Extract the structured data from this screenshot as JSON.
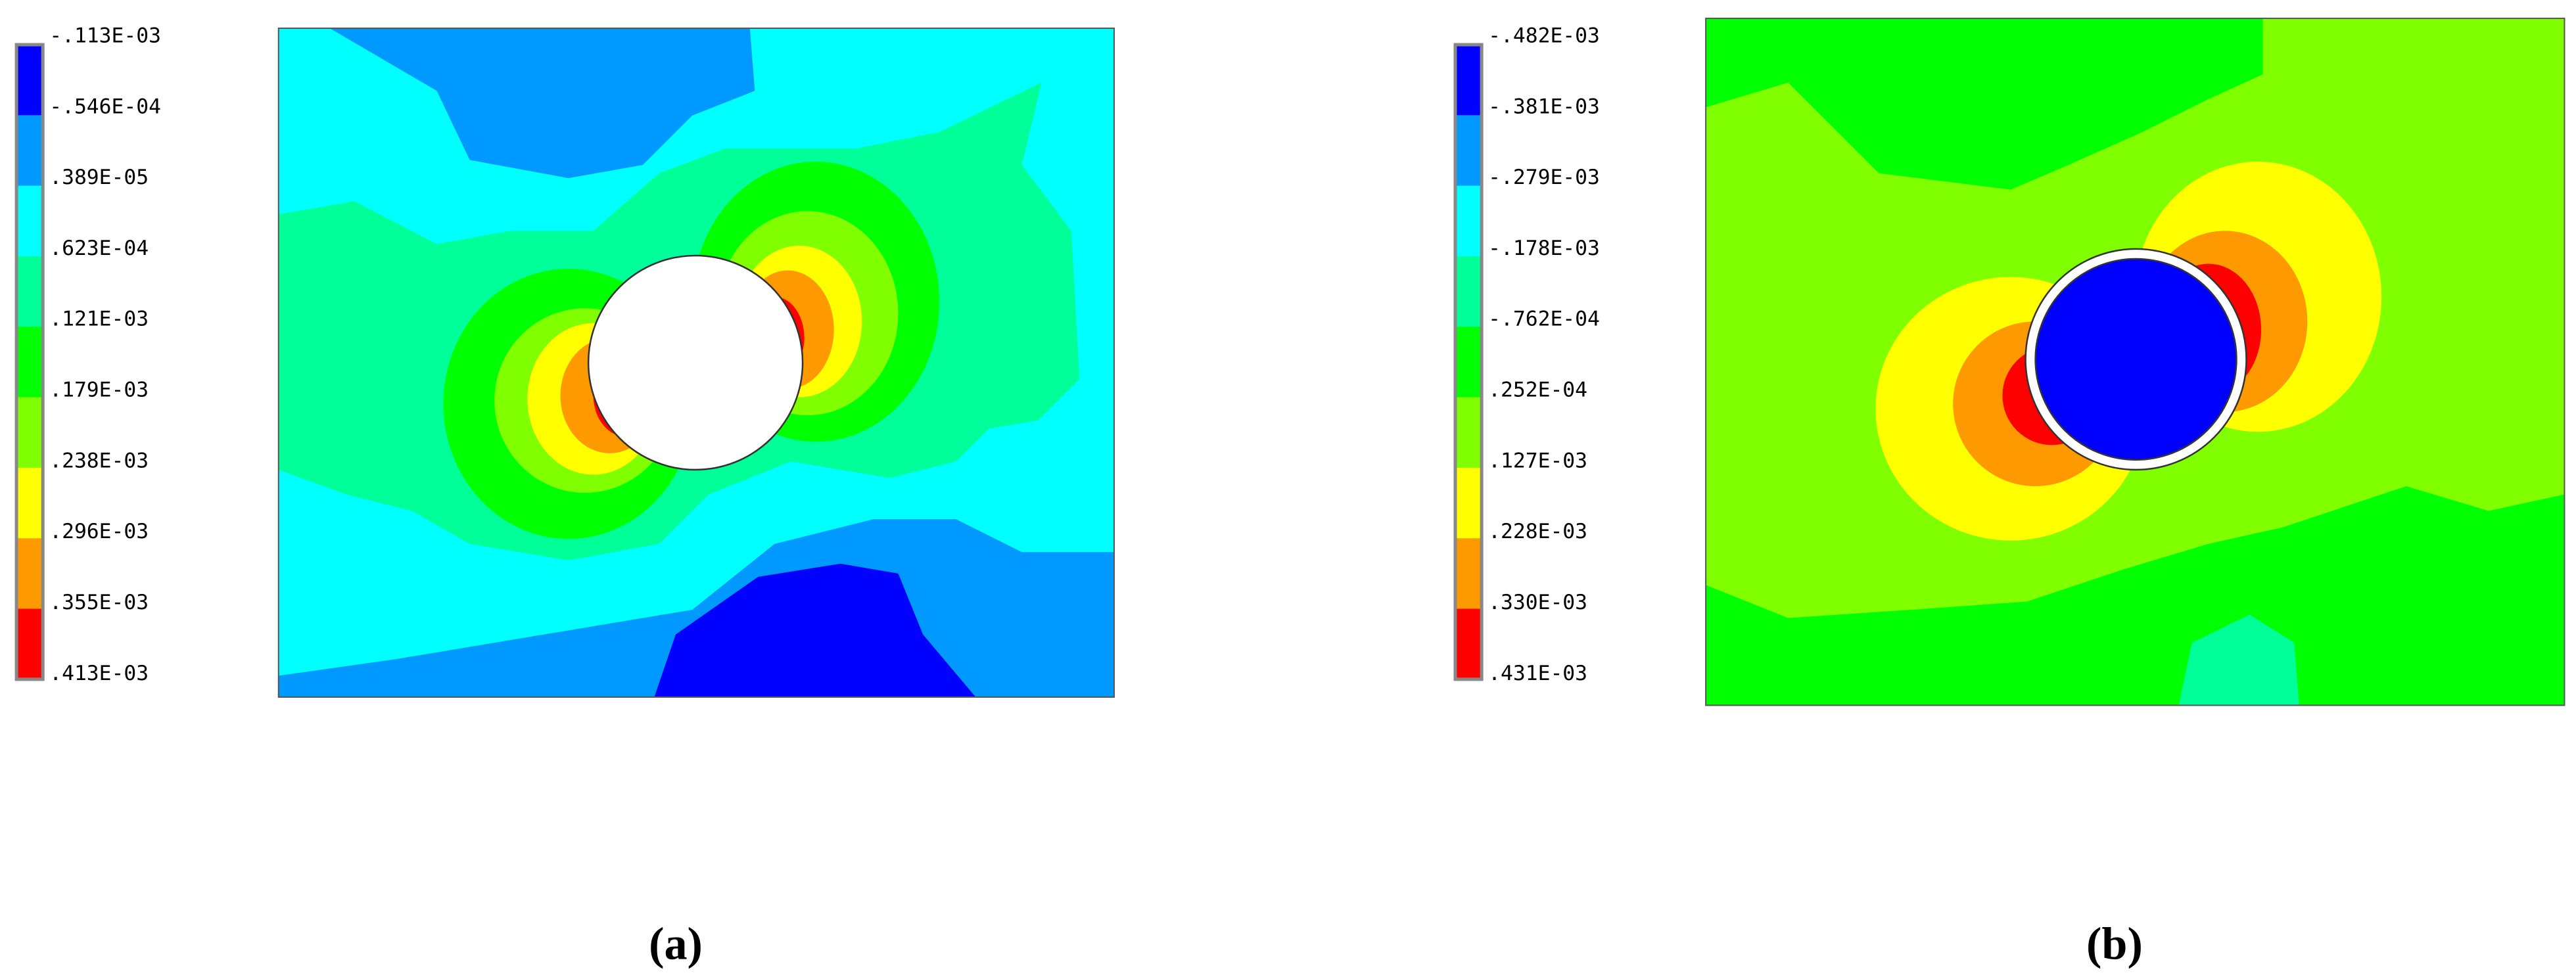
{
  "panels": [
    {
      "legend": {
        "labels": [
          "-.113E-03",
          "-.546E-04",
          ".389E-05",
          ".623E-04",
          ".121E-03",
          ".179E-03",
          ".238E-03",
          ".296E-03",
          ".355E-03",
          ".413E-03"
        ]
      },
      "caption": "(a)"
    },
    {
      "legend": {
        "labels": [
          "-.482E-03",
          "-.381E-03",
          "-.279E-03",
          "-.178E-03",
          "-.762E-04",
          ".252E-04",
          ".127E-03",
          ".228E-03",
          ".330E-03",
          ".431E-03"
        ]
      },
      "caption": "(b)"
    }
  ]
}
